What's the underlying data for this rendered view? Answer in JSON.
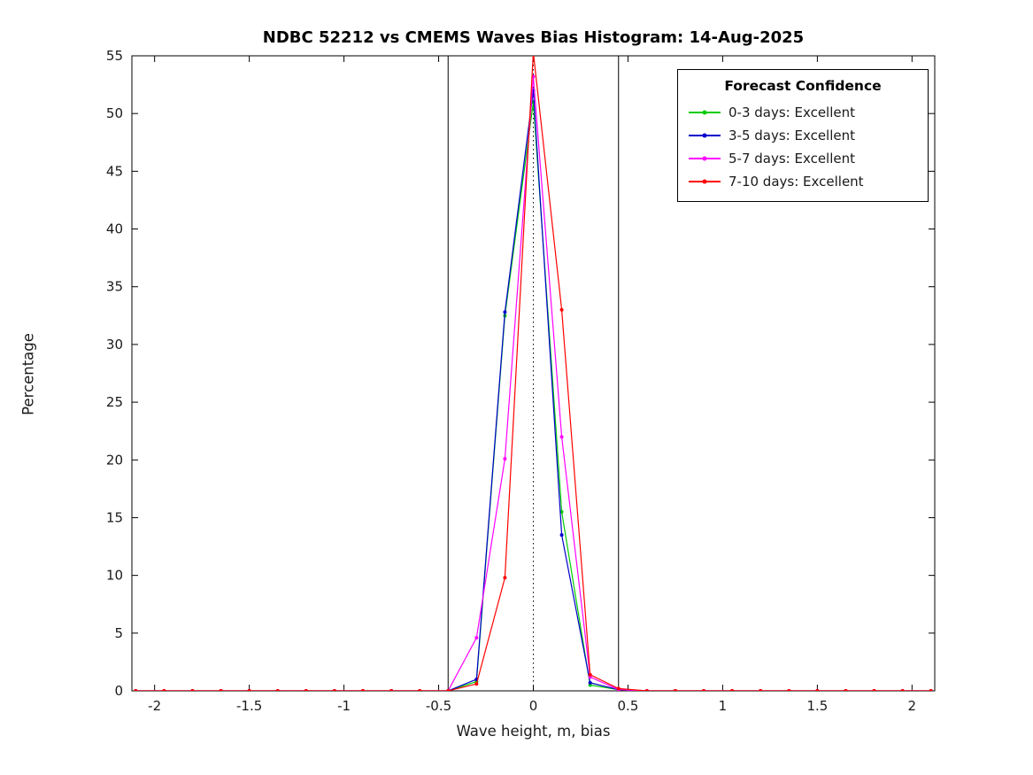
{
  "title": "NDBC 52212 vs CMEMS Waves Bias Histogram: 14-Aug-2025",
  "chart_data": {
    "type": "line",
    "title": "NDBC 52212 vs CMEMS Waves Bias Histogram: 14-Aug-2025",
    "xlabel": "Wave height, m, bias",
    "ylabel": "Percentage",
    "xlim": [
      -2.12,
      2.12
    ],
    "ylim": [
      0,
      55
    ],
    "xticks": [
      -2,
      -1.5,
      -1,
      -0.5,
      0,
      0.5,
      1,
      1.5,
      2
    ],
    "yticks": [
      0,
      5,
      10,
      15,
      20,
      25,
      30,
      35,
      40,
      45,
      50,
      55
    ],
    "grid": false,
    "reference_lines": {
      "solid_x": [
        -0.45,
        0.45
      ],
      "dotted_x": [
        0
      ]
    },
    "x": [
      -2.1,
      -1.95,
      -1.8,
      -1.65,
      -1.5,
      -1.35,
      -1.2,
      -1.05,
      -0.9,
      -0.75,
      -0.6,
      -0.45,
      -0.3,
      -0.15,
      0,
      0.15,
      0.3,
      0.45,
      0.6,
      0.75,
      0.9,
      1.05,
      1.2,
      1.35,
      1.5,
      1.65,
      1.8,
      1.95,
      2.1
    ],
    "series": [
      {
        "name": "0-3 days",
        "legend_label": "0-3 days: Excellent",
        "color": "#00cc00",
        "values": [
          0,
          0,
          0,
          0,
          0,
          0,
          0,
          0,
          0,
          0,
          0,
          0,
          0.8,
          32.5,
          51.0,
          15.5,
          0.5,
          0.1,
          0,
          0,
          0,
          0,
          0,
          0,
          0,
          0,
          0,
          0,
          0
        ]
      },
      {
        "name": "3-5 days",
        "legend_label": "3-5 days: Excellent",
        "color": "#0000cc",
        "values": [
          0,
          0,
          0,
          0,
          0,
          0,
          0,
          0,
          0,
          0,
          0,
          0,
          1.0,
          32.8,
          52.0,
          13.5,
          0.7,
          0.1,
          0,
          0,
          0,
          0,
          0,
          0,
          0,
          0,
          0,
          0,
          0
        ]
      },
      {
        "name": "5-7 days",
        "legend_label": "5-7 days: Excellent",
        "color": "#ff00ff",
        "values": [
          0,
          0,
          0,
          0,
          0,
          0,
          0,
          0,
          0,
          0,
          0,
          0,
          4.6,
          20.1,
          53.2,
          22.0,
          1.2,
          0.1,
          0,
          0,
          0,
          0,
          0,
          0,
          0,
          0,
          0,
          0,
          0
        ]
      },
      {
        "name": "7-10 days",
        "legend_label": "7-10 days: Excellent",
        "color": "#ff0000",
        "values": [
          0,
          0,
          0,
          0,
          0,
          0,
          0,
          0,
          0,
          0,
          0,
          0,
          0.6,
          9.8,
          55.3,
          33.0,
          1.4,
          0.2,
          0,
          0,
          0,
          0,
          0,
          0,
          0,
          0,
          0,
          0,
          0
        ]
      }
    ],
    "legend": {
      "title": "Forecast Confidence",
      "position": "top-right"
    }
  }
}
